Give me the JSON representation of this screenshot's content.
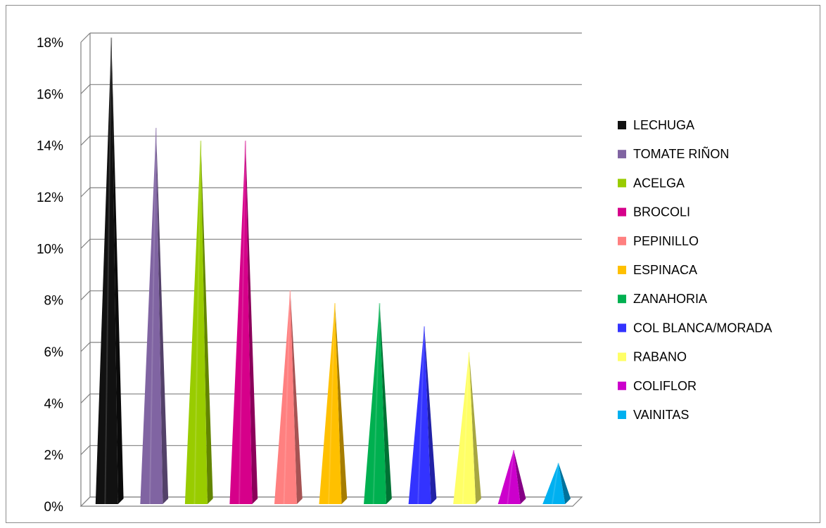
{
  "chart_data": {
    "type": "bar",
    "bar_shape": "pyramid",
    "categories": [
      "LECHUGA",
      "TOMATE RIÑON",
      "ACELGA",
      "BROCOLI",
      "PEPINILLO",
      "ESPINACA",
      "ZANAHORIA",
      "COL BLANCA/MORADA",
      "RABANO",
      "COLIFLOR",
      "VAINITAS"
    ],
    "values": [
      18,
      14.5,
      14,
      14,
      8.2,
      7.7,
      7.7,
      6.8,
      5.8,
      2,
      1.5
    ],
    "colors": [
      "#111111",
      "#8064A2",
      "#99CC00",
      "#D6008A",
      "#FF8080",
      "#FFC000",
      "#00B050",
      "#3333FF",
      "#FFFF66",
      "#CC00CC",
      "#00B0F0"
    ],
    "ylim": [
      0,
      18
    ],
    "yticks": [
      "0%",
      "2%",
      "4%",
      "6%",
      "8%",
      "10%",
      "12%",
      "14%",
      "16%",
      "18%"
    ],
    "grid": true,
    "legend_position": "right",
    "title": "",
    "xlabel": "",
    "ylabel": ""
  }
}
